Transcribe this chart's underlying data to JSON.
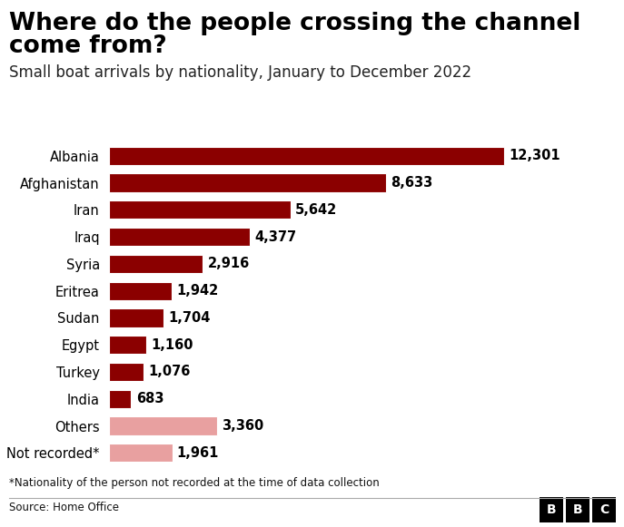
{
  "title_line1": "Where do the people crossing the channel",
  "title_line2": "come from?",
  "subtitle": "Small boat arrivals by nationality, January to December 2022",
  "categories": [
    "Albania",
    "Afghanistan",
    "Iran",
    "Iraq",
    "Syria",
    "Eritrea",
    "Sudan",
    "Egypt",
    "Turkey",
    "India",
    "Others",
    "Not recorded*"
  ],
  "values": [
    12301,
    8633,
    5642,
    4377,
    2916,
    1942,
    1704,
    1160,
    1076,
    683,
    3360,
    1961
  ],
  "bar_colors": [
    "#8B0000",
    "#8B0000",
    "#8B0000",
    "#8B0000",
    "#8B0000",
    "#8B0000",
    "#8B0000",
    "#8B0000",
    "#8B0000",
    "#8B0000",
    "#E8A0A0",
    "#E8A0A0"
  ],
  "value_labels": [
    "12,301",
    "8,633",
    "5,642",
    "4,377",
    "2,916",
    "1,942",
    "1,704",
    "1,160",
    "1,076",
    "683",
    "3,360",
    "1,961"
  ],
  "footnote": "*Nationality of the person not recorded at the time of data collection",
  "source": "Source: Home Office",
  "background_color": "#FFFFFF",
  "title_fontsize": 19,
  "subtitle_fontsize": 12,
  "label_fontsize": 10.5,
  "value_fontsize": 10.5,
  "xlim": [
    0,
    14000
  ],
  "bar_height": 0.68
}
